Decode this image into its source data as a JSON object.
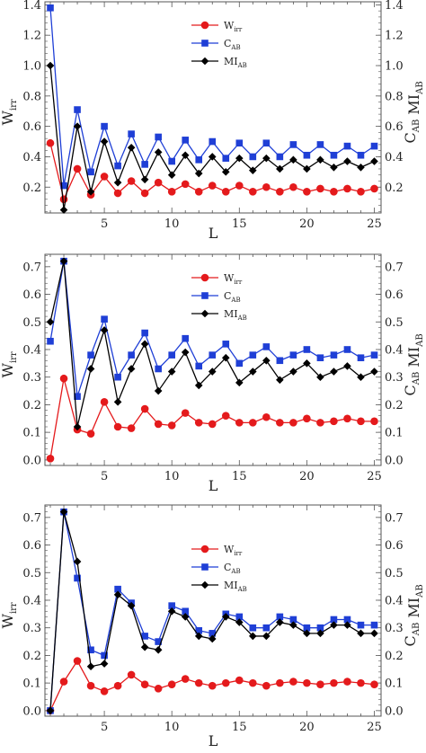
{
  "chart_data": [
    {
      "type": "line",
      "panel": "top",
      "xlabel": "L",
      "ylabel_left": "W_irr",
      "ylabel_right": "C_AB MI_AB",
      "xlim": [
        0.6,
        25.5
      ],
      "ylim": [
        0.03,
        1.42
      ],
      "xticks": [
        5,
        10,
        15,
        20,
        25
      ],
      "yticks": [
        0.2,
        0.4,
        0.6,
        0.8,
        1.0,
        1.2,
        1.4
      ],
      "ytick_labels": [
        "0.2",
        "0.4",
        "0.6",
        "0.8",
        "1.0",
        "1.2",
        "1.4"
      ],
      "legend_position": "top-center",
      "x": [
        1,
        2,
        3,
        4,
        5,
        6,
        7,
        8,
        9,
        10,
        11,
        12,
        13,
        14,
        15,
        16,
        17,
        18,
        19,
        20,
        21,
        22,
        23,
        24,
        25
      ],
      "series": [
        {
          "name": "W_irr",
          "color": "#e41a1c",
          "marker": "circle",
          "values": [
            0.49,
            0.12,
            0.32,
            0.15,
            0.27,
            0.16,
            0.24,
            0.16,
            0.23,
            0.17,
            0.22,
            0.17,
            0.21,
            0.17,
            0.21,
            0.17,
            0.2,
            0.17,
            0.2,
            0.17,
            0.19,
            0.17,
            0.19,
            0.17,
            0.19
          ]
        },
        {
          "name": "C_AB",
          "color": "#1f3fd6",
          "marker": "square",
          "values": [
            1.38,
            0.21,
            0.71,
            0.3,
            0.6,
            0.34,
            0.55,
            0.35,
            0.53,
            0.37,
            0.51,
            0.38,
            0.5,
            0.39,
            0.49,
            0.4,
            0.49,
            0.4,
            0.48,
            0.41,
            0.48,
            0.41,
            0.47,
            0.41,
            0.47
          ]
        },
        {
          "name": "MI_AB",
          "color": "#000000",
          "marker": "diamond",
          "values": [
            1.0,
            0.05,
            0.6,
            0.17,
            0.5,
            0.23,
            0.46,
            0.25,
            0.43,
            0.28,
            0.41,
            0.29,
            0.4,
            0.3,
            0.39,
            0.31,
            0.39,
            0.32,
            0.38,
            0.32,
            0.38,
            0.33,
            0.37,
            0.33,
            0.37
          ]
        }
      ]
    },
    {
      "type": "line",
      "panel": "middle",
      "xlabel": "L",
      "ylabel_left": "W_irr",
      "ylabel_right": "C_AB MI_AB",
      "xlim": [
        0.6,
        25.5
      ],
      "ylim": [
        -0.02,
        0.745
      ],
      "xticks": [
        5,
        10,
        15,
        20,
        25
      ],
      "yticks": [
        0.0,
        0.1,
        0.2,
        0.3,
        0.4,
        0.5,
        0.6,
        0.7
      ],
      "ytick_labels": [
        "0.0",
        "0.1",
        "0.2",
        "0.3",
        "0.4",
        "0.5",
        "0.6",
        "0.7"
      ],
      "legend_position": "top-center",
      "x": [
        1,
        2,
        3,
        4,
        5,
        6,
        7,
        8,
        9,
        10,
        11,
        12,
        13,
        14,
        15,
        16,
        17,
        18,
        19,
        20,
        21,
        22,
        23,
        24,
        25
      ],
      "series": [
        {
          "name": "W_irr",
          "color": "#e41a1c",
          "marker": "circle",
          "values": [
            0.005,
            0.295,
            0.11,
            0.095,
            0.21,
            0.12,
            0.115,
            0.185,
            0.13,
            0.125,
            0.17,
            0.135,
            0.13,
            0.16,
            0.135,
            0.135,
            0.155,
            0.135,
            0.135,
            0.15,
            0.135,
            0.14,
            0.15,
            0.14,
            0.14
          ]
        },
        {
          "name": "C_AB",
          "color": "#1f3fd6",
          "marker": "square",
          "values": [
            0.43,
            0.72,
            0.23,
            0.38,
            0.51,
            0.3,
            0.38,
            0.46,
            0.33,
            0.38,
            0.44,
            0.34,
            0.38,
            0.42,
            0.35,
            0.38,
            0.41,
            0.36,
            0.38,
            0.4,
            0.37,
            0.38,
            0.4,
            0.37,
            0.38
          ]
        },
        {
          "name": "MI_AB",
          "color": "#000000",
          "marker": "diamond",
          "values": [
            0.5,
            0.72,
            0.12,
            0.33,
            0.47,
            0.21,
            0.33,
            0.42,
            0.25,
            0.32,
            0.39,
            0.27,
            0.32,
            0.37,
            0.28,
            0.32,
            0.36,
            0.29,
            0.32,
            0.35,
            0.3,
            0.32,
            0.34,
            0.3,
            0.32
          ]
        }
      ]
    },
    {
      "type": "line",
      "panel": "bottom",
      "xlabel": "L",
      "ylabel_left": "W_irr",
      "ylabel_right": "C_AB MI_AB",
      "xlim": [
        0.6,
        25.5
      ],
      "ylim": [
        -0.02,
        0.745
      ],
      "xticks": [
        5,
        10,
        15,
        20,
        25
      ],
      "yticks": [
        0.0,
        0.1,
        0.2,
        0.3,
        0.4,
        0.5,
        0.6,
        0.7
      ],
      "ytick_labels": [
        "0.0",
        "0.1",
        "0.2",
        "0.3",
        "0.4",
        "0.5",
        "0.6",
        "0.7"
      ],
      "legend_position": "top-center",
      "x": [
        1,
        2,
        3,
        4,
        5,
        6,
        7,
        8,
        9,
        10,
        11,
        12,
        13,
        14,
        15,
        16,
        17,
        18,
        19,
        20,
        21,
        22,
        23,
        24,
        25
      ],
      "series": [
        {
          "name": "W_irr",
          "color": "#e41a1c",
          "marker": "circle",
          "values": [
            0.0,
            0.105,
            0.18,
            0.09,
            0.07,
            0.09,
            0.13,
            0.095,
            0.08,
            0.095,
            0.115,
            0.1,
            0.09,
            0.1,
            0.11,
            0.1,
            0.09,
            0.1,
            0.105,
            0.1,
            0.095,
            0.1,
            0.105,
            0.1,
            0.095
          ]
        },
        {
          "name": "C_AB",
          "color": "#1f3fd6",
          "marker": "square",
          "values": [
            0.0,
            0.72,
            0.48,
            0.22,
            0.2,
            0.44,
            0.39,
            0.27,
            0.25,
            0.38,
            0.36,
            0.29,
            0.28,
            0.35,
            0.34,
            0.3,
            0.3,
            0.34,
            0.33,
            0.3,
            0.3,
            0.33,
            0.33,
            0.31,
            0.31
          ]
        },
        {
          "name": "MI_AB",
          "color": "#000000",
          "marker": "diamond",
          "values": [
            0.0,
            0.72,
            0.54,
            0.16,
            0.17,
            0.42,
            0.38,
            0.23,
            0.22,
            0.36,
            0.34,
            0.27,
            0.26,
            0.34,
            0.32,
            0.27,
            0.27,
            0.32,
            0.31,
            0.28,
            0.28,
            0.31,
            0.31,
            0.28,
            0.28
          ]
        }
      ]
    }
  ]
}
